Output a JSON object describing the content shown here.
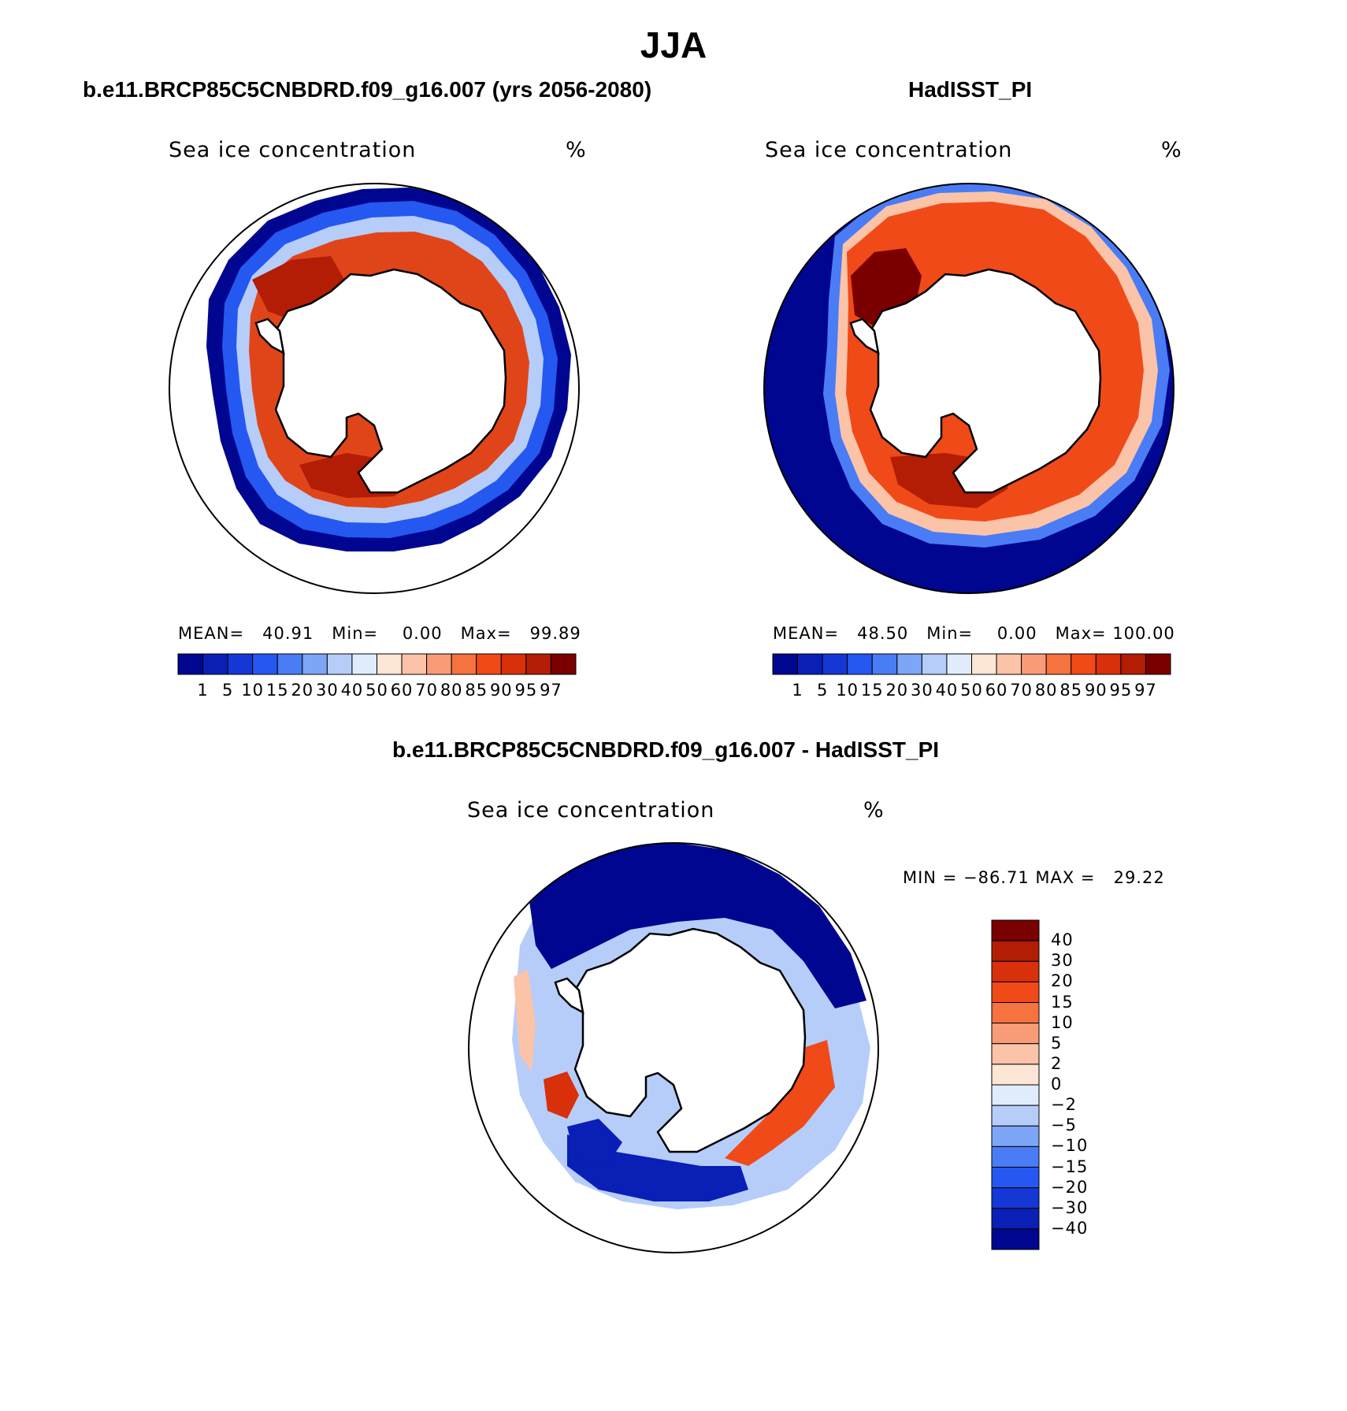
{
  "title": "JJA",
  "panels": [
    {
      "id": "model",
      "title": "b.e11.BRCP85C5CNBDRD.f09_g16.007 (yrs 2056-2080)",
      "variable": "Sea ice concentration",
      "units": "%",
      "stats": {
        "mean_label": "MEAN=",
        "mean": "40.91",
        "min_label": "Min=",
        "min": "0.00",
        "max_label": "Max=",
        "max": "99.89"
      }
    },
    {
      "id": "obs",
      "title": "HadISST_PI",
      "variable": "Sea ice concentration",
      "units": "%",
      "stats": {
        "mean_label": "MEAN=",
        "mean": "48.50",
        "min_label": "Min=",
        "min": "0.00",
        "max_label": "Max=",
        "max": "100.00"
      }
    },
    {
      "id": "diff",
      "title": "b.e11.BRCP85C5CNBDRD.f09_g16.007 - HadISST_PI",
      "variable": "Sea ice concentration",
      "units": "%",
      "stats": {
        "min_label": "MIN =",
        "min": "−86.71",
        "max_label": "MAX =",
        "max": "29.22"
      }
    }
  ],
  "colorbar_abs": {
    "labels": [
      "1",
      "5",
      "10",
      "15",
      "20",
      "30",
      "40",
      "50",
      "60",
      "70",
      "80",
      "85",
      "90",
      "95",
      "97"
    ],
    "colors": [
      "#00068f",
      "#0a1fb5",
      "#1537d6",
      "#2458f0",
      "#4a7cf5",
      "#7ea6f7",
      "#b6cdf9",
      "#e0ecfc",
      "#fde6d6",
      "#fbc3a8",
      "#f89c78",
      "#f6723f",
      "#f04a18",
      "#d8300a",
      "#b31c05",
      "#7a0000"
    ]
  },
  "colorbar_diff": {
    "labels": [
      "40",
      "30",
      "20",
      "15",
      "10",
      "5",
      "2",
      "0",
      "−2",
      "−5",
      "−10",
      "−15",
      "−20",
      "−30",
      "−40"
    ],
    "colors": [
      "#7a0000",
      "#b31c05",
      "#d8300a",
      "#f04a18",
      "#f6723f",
      "#f89c78",
      "#fbc3a8",
      "#fde6d6",
      "#e0ecfc",
      "#b6cdf9",
      "#7ea6f7",
      "#4a7cf5",
      "#2458f0",
      "#1537d6",
      "#0a1fb5",
      "#00068f"
    ]
  }
}
